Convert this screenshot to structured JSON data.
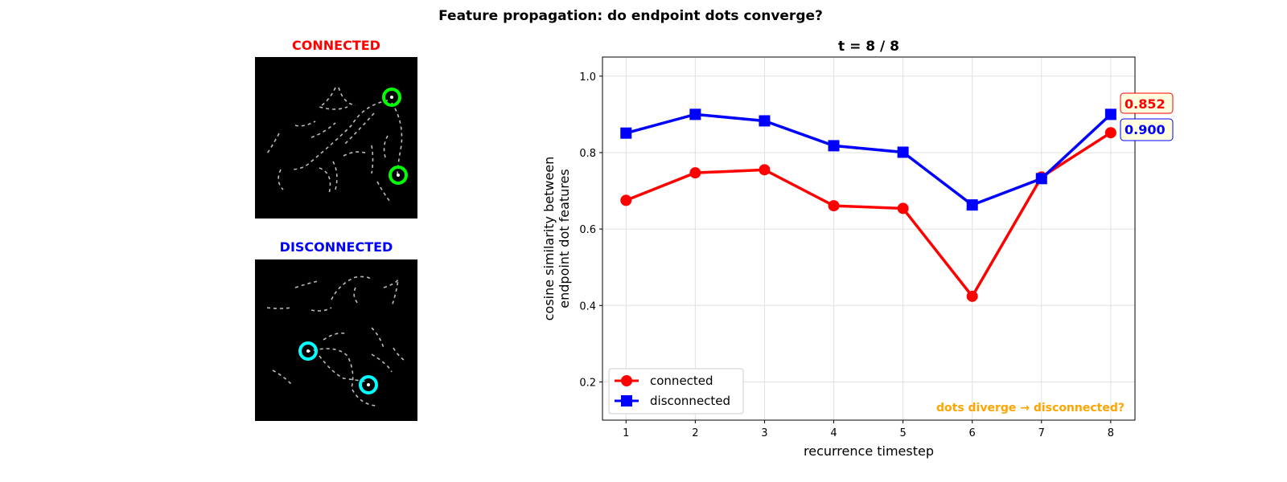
{
  "suptitle": "Feature propagation: do endpoint dots converge?",
  "panels": {
    "connected_title": "CONNECTED",
    "disconnected_title": "DISCONNECTED",
    "connected_color": "#ff0000",
    "disconnected_color": "#0000ff",
    "connected_marker_color": "#00ff00",
    "disconnected_marker_color": "#00ffff"
  },
  "chart_data": {
    "type": "line",
    "title": "t = 8 / 8",
    "xlabel": "recurrence timestep",
    "ylabel_lines": [
      "cosine similarity between",
      "endpoint dot features"
    ],
    "x": [
      1,
      2,
      3,
      4,
      5,
      6,
      7,
      8
    ],
    "xlim": [
      0.66,
      8.35
    ],
    "ylim": [
      0.1,
      1.05
    ],
    "xticks": [
      "1",
      "2",
      "3",
      "4",
      "5",
      "6",
      "7",
      "8"
    ],
    "yticks": [
      "0.2",
      "0.4",
      "0.6",
      "0.8",
      "1.0"
    ],
    "grid": true,
    "series": [
      {
        "name": "connected",
        "color": "#ff0000",
        "marker": "circle",
        "values": [
          0.675,
          0.747,
          0.755,
          0.661,
          0.654,
          0.424,
          0.736,
          0.852
        ],
        "end_label": "0.852"
      },
      {
        "name": "disconnected",
        "color": "#0000ff",
        "marker": "square",
        "values": [
          0.851,
          0.9,
          0.883,
          0.818,
          0.801,
          0.663,
          0.732,
          0.9
        ],
        "end_label": "0.900"
      }
    ],
    "legend_placement": "lower-left",
    "annotation": "dots diverge → disconnected?",
    "annotation_color": "#ffa500"
  }
}
